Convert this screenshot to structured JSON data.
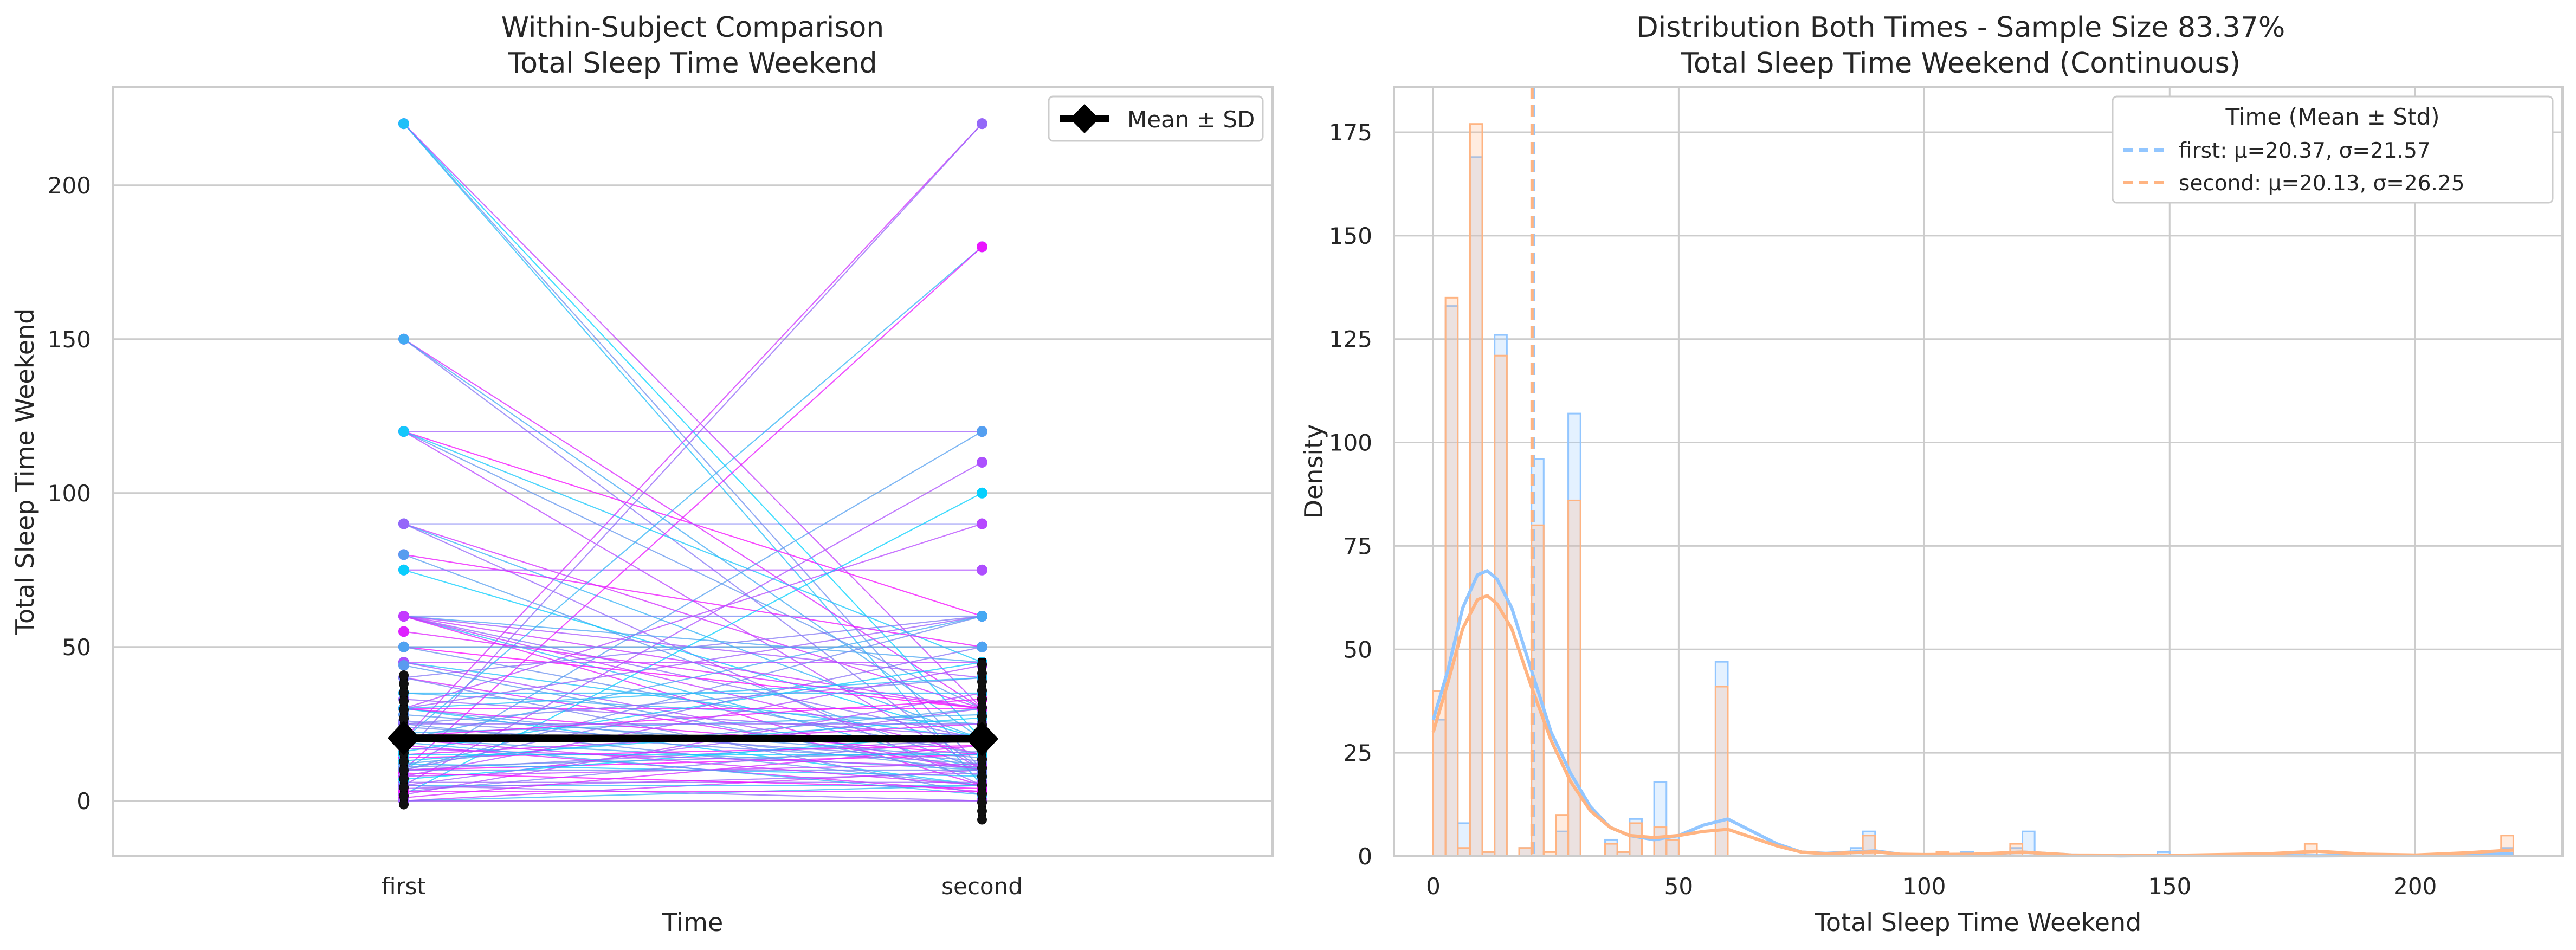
{
  "chart_data": [
    {
      "type": "line",
      "title": "Within-Subject Comparison\nTotal Sleep Time Weekend",
      "xlabel": "Time",
      "ylabel": "Total Sleep Time Weekend",
      "categories": [
        "first",
        "second"
      ],
      "ylim": [
        -18,
        232
      ],
      "yticks": [
        0,
        50,
        100,
        150,
        200
      ],
      "grid": "y",
      "legend": {
        "position": "top-right",
        "entries": [
          "Mean ± SD"
        ]
      },
      "mean_sd": {
        "first": {
          "mean": 20.37,
          "sd": 21.57
        },
        "second": {
          "mean": 20.13,
          "sd": 26.25
        }
      },
      "pairs": [
        [
          220,
          20
        ],
        [
          220,
          10
        ],
        [
          220,
          30
        ],
        [
          220,
          5
        ],
        [
          150,
          10
        ],
        [
          150,
          30
        ],
        [
          150,
          20
        ],
        [
          120,
          120
        ],
        [
          120,
          60
        ],
        [
          120,
          30
        ],
        [
          120,
          10
        ],
        [
          120,
          45
        ],
        [
          90,
          90
        ],
        [
          90,
          30
        ],
        [
          90,
          20
        ],
        [
          90,
          5
        ],
        [
          80,
          50
        ],
        [
          80,
          10
        ],
        [
          75,
          75
        ],
        [
          75,
          20
        ],
        [
          60,
          60
        ],
        [
          60,
          30
        ],
        [
          60,
          10
        ],
        [
          60,
          20
        ],
        [
          60,
          5
        ],
        [
          60,
          45
        ],
        [
          60,
          40
        ],
        [
          50,
          30
        ],
        [
          50,
          15
        ],
        [
          45,
          45
        ],
        [
          45,
          20
        ],
        [
          40,
          60
        ],
        [
          40,
          10
        ],
        [
          35,
          25
        ],
        [
          30,
          60
        ],
        [
          30,
          30
        ],
        [
          30,
          10
        ],
        [
          30,
          90
        ],
        [
          30,
          5
        ],
        [
          25,
          40
        ],
        [
          20,
          220
        ],
        [
          20,
          180
        ],
        [
          15,
          220
        ],
        [
          10,
          180
        ],
        [
          10,
          120
        ],
        [
          5,
          110
        ],
        [
          2,
          100
        ],
        [
          10,
          60
        ],
        [
          0,
          10
        ],
        [
          5,
          5
        ],
        [
          10,
          20
        ],
        [
          15,
          25
        ],
        [
          20,
          10
        ],
        [
          5,
          30
        ],
        [
          10,
          15
        ],
        [
          25,
          5
        ],
        [
          8,
          12
        ],
        [
          12,
          8
        ],
        [
          3,
          20
        ],
        [
          18,
          3
        ],
        [
          22,
          28
        ],
        [
          6,
          6
        ],
        [
          14,
          18
        ],
        [
          28,
          14
        ],
        [
          2,
          35
        ],
        [
          16,
          45
        ],
        [
          40,
          2
        ],
        [
          20,
          20
        ],
        [
          0,
          5
        ],
        [
          5,
          0
        ],
        [
          30,
          15
        ],
        [
          12,
          30
        ],
        [
          45,
          10
        ],
        [
          7,
          22
        ],
        [
          24,
          12
        ],
        [
          60,
          15
        ],
        [
          30,
          40
        ],
        [
          10,
          50
        ],
        [
          55,
          30
        ],
        [
          20,
          60
        ],
        [
          4,
          9
        ],
        [
          9,
          4
        ],
        [
          11,
          16
        ],
        [
          17,
          11
        ],
        [
          13,
          27
        ],
        [
          26,
          13
        ],
        [
          1,
          18
        ],
        [
          19,
          2
        ],
        [
          33,
          21
        ],
        [
          21,
          33
        ],
        [
          44,
          8
        ],
        [
          8,
          44
        ],
        [
          15,
          15
        ],
        [
          10,
          10
        ],
        [
          20,
          5
        ],
        [
          35,
          35
        ],
        [
          25,
          25
        ],
        [
          3,
          3
        ],
        [
          50,
          50
        ],
        [
          0,
          0
        ]
      ]
    },
    {
      "type": "bar",
      "title": "Distribution Both Times - Sample Size 83.37%\nTotal Sleep Time Weekend (Continuous)",
      "xlabel": "Total Sleep Time Weekend",
      "ylabel": "Density",
      "xlim": [
        -8,
        230
      ],
      "ylim": [
        0,
        186
      ],
      "xticks": [
        0,
        50,
        100,
        150,
        200
      ],
      "yticks": [
        0,
        25,
        50,
        75,
        100,
        125,
        150,
        175
      ],
      "grid": "both",
      "legend": {
        "position": "top-right",
        "title": "Time (Mean ± Std)"
      },
      "bin_width": 2.5,
      "series": [
        {
          "name": "first: μ=20.37, σ=21.57",
          "color": "#92c6ff",
          "mean": 20.37,
          "bins": [
            [
              0,
              33
            ],
            [
              2.5,
              133
            ],
            [
              5,
              8
            ],
            [
              7.5,
              169
            ],
            [
              10,
              1
            ],
            [
              12.5,
              126
            ],
            [
              17.5,
              2
            ],
            [
              20,
              96
            ],
            [
              25,
              6
            ],
            [
              27.5,
              107
            ],
            [
              35,
              4
            ],
            [
              37.5,
              1
            ],
            [
              40,
              9
            ],
            [
              45,
              18
            ],
            [
              47.5,
              5
            ],
            [
              57.5,
              47
            ],
            [
              85,
              2
            ],
            [
              87.5,
              6
            ],
            [
              107.5,
              1
            ],
            [
              117.5,
              2
            ],
            [
              120,
              6
            ],
            [
              147.5,
              1
            ],
            [
              217.5,
              2
            ]
          ],
          "kde": [
            [
              0,
              33
            ],
            [
              3,
              45
            ],
            [
              6,
              60
            ],
            [
              9,
              68
            ],
            [
              11,
              69
            ],
            [
              13,
              67
            ],
            [
              16,
              60
            ],
            [
              20,
              45
            ],
            [
              24,
              30
            ],
            [
              28,
              20
            ],
            [
              32,
              12
            ],
            [
              36,
              7
            ],
            [
              40,
              5
            ],
            [
              45,
              4
            ],
            [
              50,
              5
            ],
            [
              55,
              7.5
            ],
            [
              60,
              9
            ],
            [
              65,
              6
            ],
            [
              70,
              3
            ],
            [
              75,
              1
            ],
            [
              80,
              0.7
            ],
            [
              90,
              1.3
            ],
            [
              95,
              0.5
            ],
            [
              100,
              0.3
            ],
            [
              110,
              0.4
            ],
            [
              120,
              1
            ],
            [
              130,
              0.3
            ],
            [
              140,
              0.1
            ],
            [
              150,
              0.2
            ],
            [
              180,
              0.1
            ],
            [
              210,
              0.3
            ],
            [
              220,
              0.6
            ]
          ]
        },
        {
          "name": "second: μ=20.13, σ=26.25",
          "color": "#ffb482",
          "mean": 20.13,
          "bins": [
            [
              0,
              40
            ],
            [
              2.5,
              135
            ],
            [
              5,
              2
            ],
            [
              7.5,
              177
            ],
            [
              10,
              1
            ],
            [
              12.5,
              121
            ],
            [
              17.5,
              2
            ],
            [
              20,
              80
            ],
            [
              22.5,
              1
            ],
            [
              25,
              10
            ],
            [
              27.5,
              86
            ],
            [
              35,
              3
            ],
            [
              37.5,
              1
            ],
            [
              40,
              8
            ],
            [
              45,
              7
            ],
            [
              47.5,
              4
            ],
            [
              57.5,
              41
            ],
            [
              87.5,
              5
            ],
            [
              102.5,
              1
            ],
            [
              117.5,
              3
            ],
            [
              177.5,
              3
            ],
            [
              217.5,
              5
            ]
          ],
          "kde": [
            [
              0,
              30
            ],
            [
              3,
              42
            ],
            [
              6,
              55
            ],
            [
              9,
              62
            ],
            [
              11,
              63
            ],
            [
              13,
              61
            ],
            [
              16,
              55
            ],
            [
              20,
              41
            ],
            [
              24,
              28
            ],
            [
              28,
              18
            ],
            [
              32,
              11
            ],
            [
              36,
              7
            ],
            [
              40,
              5
            ],
            [
              45,
              4.5
            ],
            [
              50,
              5
            ],
            [
              55,
              6
            ],
            [
              60,
              6.5
            ],
            [
              65,
              4.5
            ],
            [
              70,
              2.5
            ],
            [
              75,
              1
            ],
            [
              80,
              0.6
            ],
            [
              90,
              1.1
            ],
            [
              95,
              0.5
            ],
            [
              100,
              0.4
            ],
            [
              110,
              0.5
            ],
            [
              120,
              1
            ],
            [
              130,
              0.3
            ],
            [
              150,
              0.2
            ],
            [
              170,
              0.6
            ],
            [
              180,
              1.2
            ],
            [
              190,
              0.5
            ],
            [
              200,
              0.3
            ],
            [
              210,
              0.8
            ],
            [
              220,
              1.5
            ]
          ]
        }
      ]
    }
  ],
  "colors": {
    "mean_sd": "#000000",
    "first_mean_line": "#92c6ff",
    "second_mean_line": "#ffb482",
    "grid": "#cccccc",
    "pair_cmap": [
      "#00d4ff",
      "#6495ed",
      "#b04cff",
      "#ff00ff"
    ]
  }
}
